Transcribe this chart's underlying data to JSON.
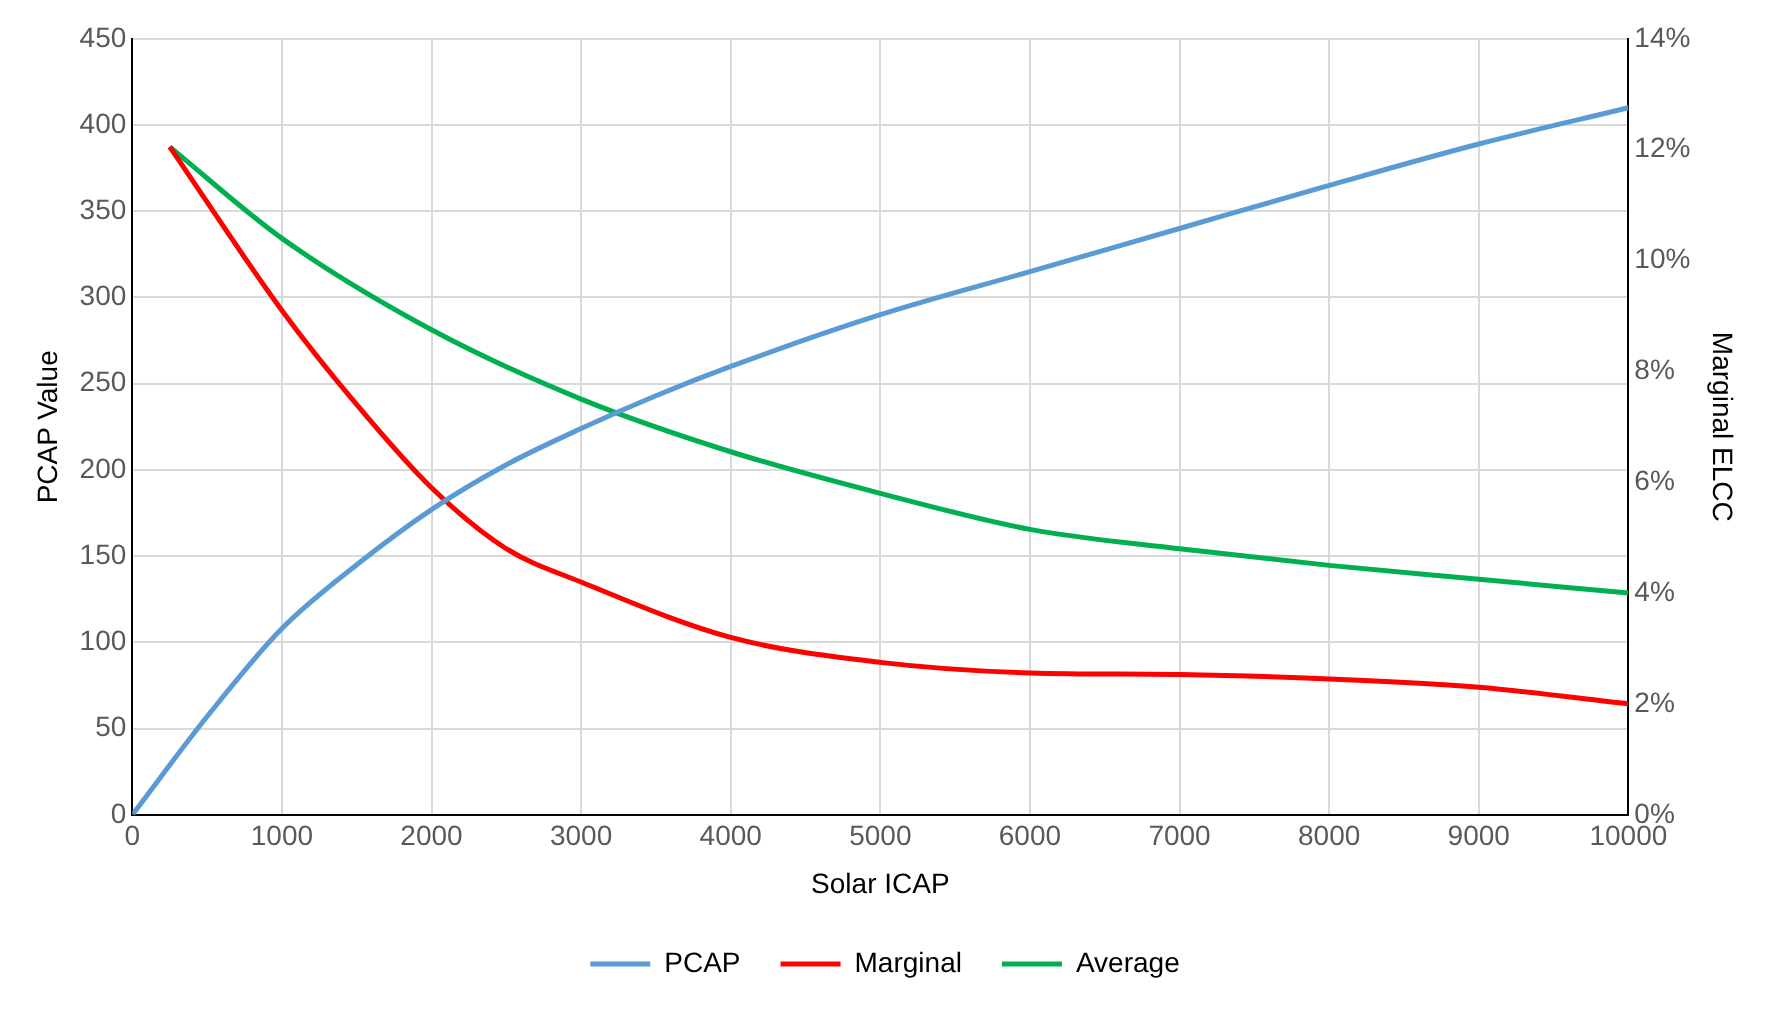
{
  "chart_data": {
    "type": "line",
    "xlabel": "Solar ICAP",
    "ylabel": "PCAP Value",
    "y2label": "Marginal ELCC",
    "xlim": [
      0,
      10000
    ],
    "xticks": [
      0,
      1000,
      2000,
      3000,
      4000,
      5000,
      6000,
      7000,
      8000,
      9000,
      10000
    ],
    "ylim": [
      0,
      450
    ],
    "yticks": [
      0,
      50,
      100,
      150,
      200,
      250,
      300,
      350,
      400,
      450
    ],
    "y2lim": [
      0,
      14
    ],
    "y2ticks": [
      {
        "value": 0,
        "label": "0%"
      },
      {
        "value": 2,
        "label": "2%"
      },
      {
        "value": 4,
        "label": "4%"
      },
      {
        "value": 6,
        "label": "6%"
      },
      {
        "value": 8,
        "label": "8%"
      },
      {
        "value": 10,
        "label": "10%"
      },
      {
        "value": 12,
        "label": "12%"
      },
      {
        "value": 14,
        "label": "14%"
      }
    ],
    "grid": true,
    "legend": "bottom",
    "marker": "none",
    "line_style": "solid",
    "series": [
      {
        "name": "PCAP",
        "color": "#5b9bd5",
        "x": [
          0,
          500,
          1000,
          1500,
          2000,
          2500,
          3000,
          3500,
          4000,
          5000,
          6000,
          7000,
          8000,
          9000,
          10000
        ],
        "values": [
          0,
          57,
          108,
          145,
          177,
          203,
          224,
          243,
          260,
          290,
          315,
          340,
          365,
          389,
          410
        ]
      },
      {
        "name": "Marginal",
        "color": "#ff0000",
        "axis": "y2",
        "x": [
          250,
          1000,
          1500,
          2000,
          2500,
          3000,
          4000,
          5000,
          6000,
          7000,
          8000,
          9000,
          10000
        ],
        "values": [
          12.05,
          9.1,
          7.4,
          5.9,
          4.8,
          4.2,
          3.2,
          2.75,
          2.56,
          2.53,
          2.45,
          2.3,
          2.0
        ]
      },
      {
        "name": "Average",
        "color": "#00b050",
        "axis": "y2",
        "x": [
          250,
          1000,
          2000,
          3000,
          4000,
          5000,
          6000,
          7000,
          8000,
          9000,
          10000
        ],
        "values": [
          12.05,
          10.4,
          8.75,
          7.5,
          6.55,
          5.8,
          5.15,
          4.8,
          4.5,
          4.25,
          4.0
        ]
      }
    ]
  }
}
